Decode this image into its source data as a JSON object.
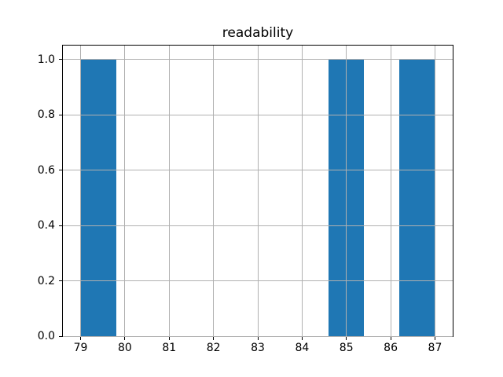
{
  "chart_data": {
    "type": "bar",
    "subtype": "histogram",
    "title": "readability",
    "xlabel": "",
    "ylabel": "",
    "xlim": [
      78.6,
      87.4
    ],
    "ylim": [
      0,
      1.05
    ],
    "grid": true,
    "legend": false,
    "bar_color": "#1f77b4",
    "grid_color": "#b0b0b0",
    "spine_color": "#000000",
    "bin_width": 0.8,
    "bars": [
      {
        "x_start": 79.0,
        "x_end": 79.8,
        "height": 1.0
      },
      {
        "x_start": 84.6,
        "x_end": 85.4,
        "height": 1.0
      },
      {
        "x_start": 86.2,
        "x_end": 87.0,
        "height": 1.0
      }
    ],
    "x_ticks": [
      79,
      80,
      81,
      82,
      83,
      84,
      85,
      86,
      87
    ],
    "x_tick_labels": [
      "79",
      "80",
      "81",
      "82",
      "83",
      "84",
      "85",
      "86",
      "87"
    ],
    "y_ticks": [
      0.0,
      0.2,
      0.4,
      0.6,
      0.8,
      1.0
    ],
    "y_tick_labels": [
      "0.0",
      "0.2",
      "0.4",
      "0.6",
      "0.8",
      "1.0"
    ]
  }
}
